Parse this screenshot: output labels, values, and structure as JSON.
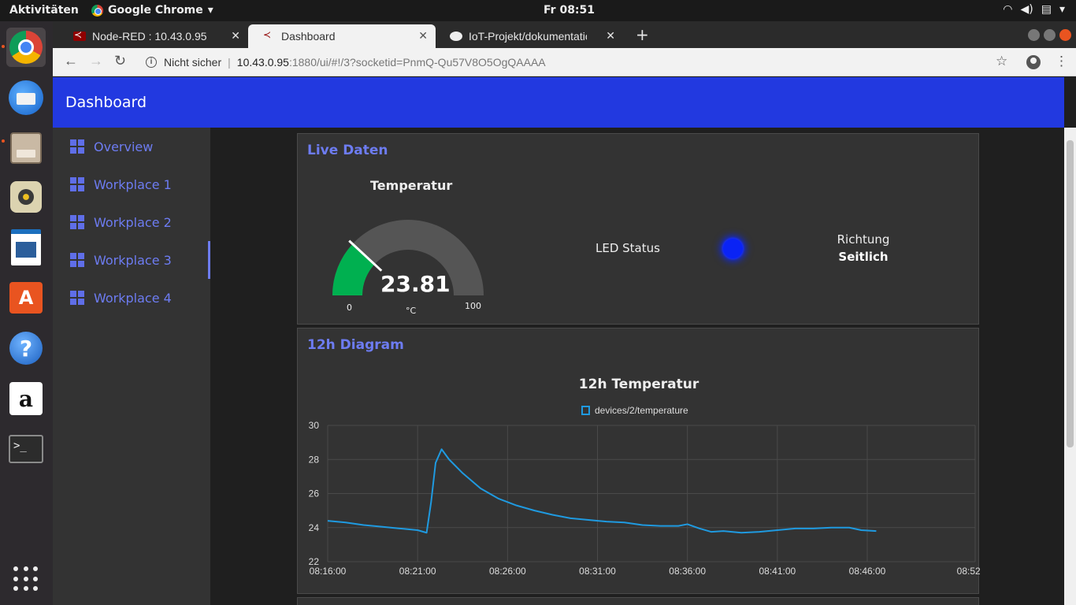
{
  "system": {
    "activities": "Aktivitäten",
    "app_name": "Google Chrome",
    "clock": "Fr 08:51"
  },
  "browser": {
    "tabs": [
      {
        "title": "Node-RED : 10.43.0.95"
      },
      {
        "title": "Dashboard"
      },
      {
        "title": "IoT-Projekt/dokumentatio"
      }
    ],
    "security_label": "Nicht sicher",
    "url_host": "10.43.0.95",
    "url_path": ":1880/ui/#!/3?socketid=PnmQ-Qu57V8O5OgQAAAA"
  },
  "dashboard": {
    "title": "Dashboard",
    "nav": [
      {
        "label": "Overview"
      },
      {
        "label": "Workplace 1"
      },
      {
        "label": "Workplace 2"
      },
      {
        "label": "Workplace 3"
      },
      {
        "label": "Workplace 4"
      }
    ],
    "active_nav": "Workplace 3",
    "live": {
      "title": "Live Daten",
      "gauge": {
        "title": "Temperatur",
        "value": "23.81",
        "value_num": 23.81,
        "min": "0",
        "max": "100",
        "unit": "°C"
      },
      "led_label": "LED Status",
      "led_color": "#0a23f5",
      "direction_label": "Richtung",
      "direction_value": "Seitlich"
    },
    "diagram": {
      "title": "12h Diagram"
    }
  },
  "colors": {
    "header": "#2239e0",
    "accent": "#6d7cf2",
    "gauge_fill": "#00b050",
    "series": "#1f9ae0"
  },
  "chart_data": {
    "type": "line",
    "title": "12h Temperatur",
    "series": [
      {
        "name": "devices/2/temperature",
        "x": [
          "08:16:00",
          "08:17:00",
          "08:18:00",
          "08:19:00",
          "08:20:00",
          "08:21:00",
          "08:21:30",
          "08:21:45",
          "08:22:00",
          "08:22:20",
          "08:22:45",
          "08:23:30",
          "08:24:30",
          "08:25:30",
          "08:26:30",
          "08:27:30",
          "08:28:30",
          "08:29:30",
          "08:30:30",
          "08:31:30",
          "08:32:30",
          "08:33:30",
          "08:34:30",
          "08:35:30",
          "08:36:00",
          "08:36:40",
          "08:37:20",
          "08:38:00",
          "08:39:00",
          "08:40:00",
          "08:41:00",
          "08:42:00",
          "08:43:00",
          "08:44:00",
          "08:45:00",
          "08:45:40",
          "08:46:30"
        ],
        "values": [
          24.4,
          24.3,
          24.15,
          24.05,
          23.95,
          23.85,
          23.7,
          25.5,
          27.8,
          28.6,
          28.0,
          27.2,
          26.3,
          25.7,
          25.3,
          25.0,
          24.75,
          24.55,
          24.45,
          24.35,
          24.3,
          24.15,
          24.1,
          24.1,
          24.2,
          23.95,
          23.75,
          23.8,
          23.7,
          23.75,
          23.85,
          23.95,
          23.95,
          24.0,
          24.0,
          23.85,
          23.8
        ]
      }
    ],
    "x_ticks": [
      "08:16:00",
      "08:21:00",
      "08:26:00",
      "08:31:00",
      "08:36:00",
      "08:41:00",
      "08:46:00",
      "08:52:00"
    ],
    "y_ticks": [
      "22",
      "24",
      "26",
      "28",
      "30"
    ],
    "xlim": [
      "08:16:00",
      "08:52:00"
    ],
    "ylim": [
      22,
      30
    ],
    "grid": true,
    "legend": "top-center"
  }
}
